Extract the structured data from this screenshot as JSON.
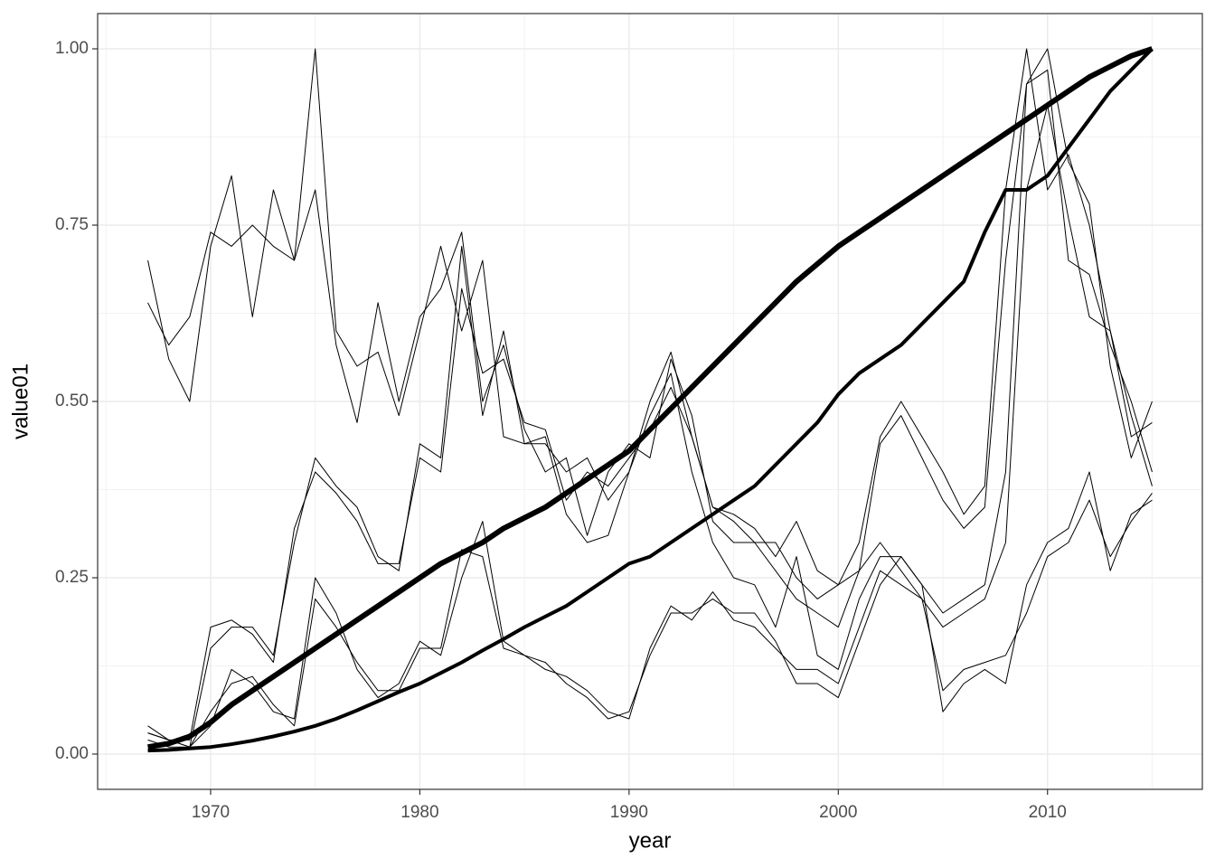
{
  "chart_data": {
    "type": "line",
    "x_label": "year",
    "y_label": "value01",
    "x": [
      1967,
      1968,
      1969,
      1970,
      1971,
      1972,
      1973,
      1974,
      1975,
      1976,
      1977,
      1978,
      1979,
      1980,
      1981,
      1982,
      1983,
      1984,
      1985,
      1986,
      1987,
      1988,
      1989,
      1990,
      1991,
      1992,
      1993,
      1994,
      1995,
      1996,
      1997,
      1998,
      1999,
      2000,
      2001,
      2002,
      2003,
      2004,
      2005,
      2006,
      2007,
      2008,
      2009,
      2010,
      2011,
      2012,
      2013,
      2014,
      2015
    ],
    "xlim": [
      1964.6,
      2017.4
    ],
    "xticks": [
      1970,
      1980,
      1990,
      2000,
      2010
    ],
    "xminorticks": [
      1965,
      1975,
      1985,
      1995,
      2005,
      2015
    ],
    "ylim": [
      -0.05,
      1.05
    ],
    "yticks": [
      {
        "value": 0,
        "label": "0.00"
      },
      {
        "value": 0.25,
        "label": "0.25"
      },
      {
        "value": 0.5,
        "label": "0.50"
      },
      {
        "value": 0.75,
        "label": "0.75"
      },
      {
        "value": 1,
        "label": "1.00"
      }
    ],
    "yminorticks": [
      0.125,
      0.375,
      0.625,
      0.875
    ],
    "grid": true,
    "series": [
      {
        "color": "#000000",
        "line_width": 6,
        "values": [
          0.01,
          0.015,
          0.025,
          0.045,
          0.07,
          0.09,
          0.11,
          0.13,
          0.15,
          0.17,
          0.19,
          0.21,
          0.23,
          0.25,
          0.27,
          0.285,
          0.3,
          0.32,
          0.335,
          0.35,
          0.37,
          0.39,
          0.41,
          0.43,
          0.46,
          0.49,
          0.52,
          0.55,
          0.58,
          0.61,
          0.64,
          0.67,
          0.695,
          0.72,
          0.74,
          0.76,
          0.78,
          0.8,
          0.82,
          0.84,
          0.86,
          0.88,
          0.9,
          0.92,
          0.94,
          0.96,
          0.975,
          0.99,
          1.0
        ]
      },
      {
        "color": "#000000",
        "line_width": 4,
        "values": [
          0.005,
          0.006,
          0.008,
          0.01,
          0.014,
          0.019,
          0.025,
          0.032,
          0.04,
          0.05,
          0.062,
          0.075,
          0.088,
          0.1,
          0.115,
          0.13,
          0.147,
          0.163,
          0.18,
          0.195,
          0.21,
          0.23,
          0.25,
          0.27,
          0.28,
          0.3,
          0.32,
          0.34,
          0.36,
          0.38,
          0.41,
          0.44,
          0.47,
          0.51,
          0.54,
          0.56,
          0.58,
          0.61,
          0.64,
          0.67,
          0.74,
          0.8,
          0.8,
          0.82,
          0.86,
          0.9,
          0.94,
          0.97,
          1.0
        ]
      },
      {
        "color": "#000000",
        "line_width": 1,
        "values": [
          0.7,
          0.56,
          0.5,
          0.72,
          0.82,
          0.62,
          0.8,
          0.7,
          1.0,
          0.6,
          0.55,
          0.57,
          0.48,
          0.6,
          0.72,
          0.6,
          0.7,
          0.45,
          0.44,
          0.45,
          0.34,
          0.3,
          0.31,
          0.4,
          0.5,
          0.57,
          0.45,
          0.35,
          0.34,
          0.32,
          0.28,
          0.33,
          0.26,
          0.24,
          0.3,
          0.45,
          0.5,
          0.45,
          0.4,
          0.34,
          0.38,
          0.8,
          1.0,
          0.8,
          0.85,
          0.75,
          0.6,
          0.45,
          0.47
        ]
      },
      {
        "color": "#000000",
        "line_width": 1,
        "values": [
          0.64,
          0.58,
          0.62,
          0.74,
          0.72,
          0.75,
          0.72,
          0.7,
          0.8,
          0.58,
          0.47,
          0.64,
          0.5,
          0.62,
          0.66,
          0.74,
          0.5,
          0.58,
          0.46,
          0.4,
          0.42,
          0.31,
          0.4,
          0.44,
          0.42,
          0.56,
          0.48,
          0.33,
          0.3,
          0.3,
          0.3,
          0.25,
          0.22,
          0.24,
          0.26,
          0.44,
          0.48,
          0.42,
          0.36,
          0.32,
          0.35,
          0.7,
          0.95,
          1.0,
          0.84,
          0.78,
          0.55,
          0.42,
          0.5
        ]
      },
      {
        "color": "#000000",
        "line_width": 1,
        "values": [
          0.03,
          0.02,
          0.01,
          0.15,
          0.18,
          0.18,
          0.14,
          0.3,
          0.42,
          0.38,
          0.35,
          0.28,
          0.26,
          0.44,
          0.42,
          0.72,
          0.48,
          0.6,
          0.44,
          0.44,
          0.4,
          0.42,
          0.36,
          0.4,
          0.48,
          0.54,
          0.4,
          0.3,
          0.25,
          0.24,
          0.18,
          0.28,
          0.14,
          0.12,
          0.22,
          0.28,
          0.28,
          0.24,
          0.2,
          0.22,
          0.24,
          0.4,
          0.95,
          0.97,
          0.7,
          0.68,
          0.58,
          0.5,
          0.4
        ]
      },
      {
        "color": "#000000",
        "line_width": 1,
        "values": [
          0.02,
          0.01,
          0.01,
          0.04,
          0.12,
          0.1,
          0.06,
          0.05,
          0.25,
          0.2,
          0.12,
          0.08,
          0.1,
          0.16,
          0.14,
          0.25,
          0.33,
          0.16,
          0.14,
          0.13,
          0.1,
          0.08,
          0.05,
          0.06,
          0.14,
          0.2,
          0.2,
          0.22,
          0.2,
          0.2,
          0.16,
          0.1,
          0.1,
          0.08,
          0.16,
          0.24,
          0.28,
          0.24,
          0.06,
          0.1,
          0.12,
          0.1,
          0.24,
          0.3,
          0.32,
          0.4,
          0.26,
          0.34,
          0.36
        ]
      },
      {
        "color": "#000000",
        "line_width": 1,
        "values": [
          0.04,
          0.02,
          0.02,
          0.18,
          0.19,
          0.17,
          0.13,
          0.32,
          0.4,
          0.37,
          0.33,
          0.27,
          0.27,
          0.42,
          0.4,
          0.66,
          0.54,
          0.56,
          0.47,
          0.46,
          0.36,
          0.4,
          0.38,
          0.42,
          0.46,
          0.52,
          0.45,
          0.35,
          0.33,
          0.3,
          0.26,
          0.22,
          0.2,
          0.18,
          0.26,
          0.3,
          0.26,
          0.22,
          0.18,
          0.2,
          0.22,
          0.3,
          0.8,
          0.92,
          0.76,
          0.62,
          0.6,
          0.48,
          0.38
        ]
      },
      {
        "color": "#000000",
        "line_width": 1,
        "values": [
          0.03,
          0.02,
          0.01,
          0.06,
          0.1,
          0.11,
          0.07,
          0.04,
          0.22,
          0.18,
          0.13,
          0.09,
          0.09,
          0.15,
          0.15,
          0.29,
          0.28,
          0.15,
          0.14,
          0.12,
          0.11,
          0.09,
          0.06,
          0.05,
          0.15,
          0.21,
          0.19,
          0.23,
          0.19,
          0.18,
          0.15,
          0.12,
          0.12,
          0.1,
          0.18,
          0.26,
          0.24,
          0.22,
          0.09,
          0.12,
          0.13,
          0.14,
          0.2,
          0.28,
          0.3,
          0.36,
          0.28,
          0.33,
          0.37
        ]
      }
    ]
  }
}
